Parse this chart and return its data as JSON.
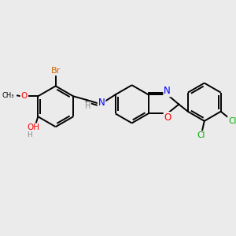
{
  "bg_color": "#ebebeb",
  "bond_color": "#000000",
  "bond_width": 1.4,
  "atom_colors": {
    "Br": "#cc6600",
    "O": "#ff0000",
    "N": "#0000ff",
    "Cl": "#00aa00",
    "H": "#888888",
    "C": "#000000"
  },
  "font_size": 7.5,
  "title": ""
}
